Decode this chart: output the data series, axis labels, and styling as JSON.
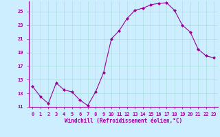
{
  "x": [
    0,
    1,
    2,
    3,
    4,
    5,
    6,
    7,
    8,
    9,
    10,
    11,
    12,
    13,
    14,
    15,
    16,
    17,
    18,
    19,
    20,
    21,
    22,
    23
  ],
  "y": [
    14.0,
    12.5,
    11.5,
    14.5,
    13.5,
    13.2,
    12.0,
    11.2,
    13.2,
    16.0,
    21.0,
    22.2,
    24.0,
    25.2,
    25.5,
    26.0,
    26.2,
    26.3,
    25.2,
    23.0,
    22.0,
    19.5,
    18.5,
    18.2
  ],
  "line_color": "#990099",
  "marker": "D",
  "marker_size": 2,
  "bg_color": "#cceeff",
  "grid_color": "#aadddd",
  "xlabel": "Windchill (Refroidissement éolien,°C)",
  "xlabel_color": "#990099",
  "tick_color": "#990099",
  "spine_color": "#990099",
  "ylim": [
    11,
    26.5
  ],
  "xlim": [
    -0.5,
    23.5
  ],
  "yticks": [
    11,
    13,
    15,
    17,
    19,
    21,
    23,
    25
  ],
  "xticks": [
    0,
    1,
    2,
    3,
    4,
    5,
    6,
    7,
    8,
    9,
    10,
    11,
    12,
    13,
    14,
    15,
    16,
    17,
    18,
    19,
    20,
    21,
    22,
    23
  ],
  "tick_fontsize": 5.0,
  "xlabel_fontsize": 5.5
}
